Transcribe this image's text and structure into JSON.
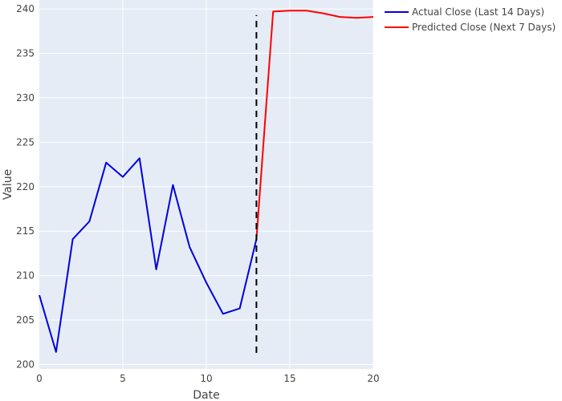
{
  "chart_data": {
    "type": "line",
    "xlabel": "Date",
    "ylabel": "Value",
    "xlim": [
      0,
      20
    ],
    "ylim": [
      199.5,
      241
    ],
    "x_ticks": [
      0,
      5,
      10,
      15,
      20
    ],
    "y_ticks": [
      200,
      205,
      210,
      215,
      220,
      225,
      230,
      235,
      240
    ],
    "grid": true,
    "legend_position": "top-right, outside plot",
    "background_color": "#e5ecf6",
    "series": [
      {
        "name": "Actual Close (Last 14 Days)",
        "color": "#0000dd",
        "x": [
          0,
          1,
          2,
          3,
          4,
          5,
          6,
          7,
          8,
          9,
          10,
          11,
          12,
          13
        ],
        "y": [
          207.8,
          201.4,
          214.1,
          216.1,
          222.7,
          221.1,
          223.2,
          210.7,
          220.2,
          213.2,
          209.2,
          205.7,
          206.3,
          214.1
        ]
      },
      {
        "name": "Predicted Close (Next 7 Days)",
        "color": "#ff0000",
        "x": [
          13,
          14,
          15,
          16,
          17,
          18,
          19,
          20
        ],
        "y": [
          214.1,
          239.7,
          239.8,
          239.8,
          239.5,
          239.1,
          239.0,
          239.1
        ]
      }
    ],
    "reference_line": {
      "x": 13,
      "y_range": [
        201.3,
        239.3
      ],
      "style": "dashed",
      "color": "#000000"
    }
  }
}
